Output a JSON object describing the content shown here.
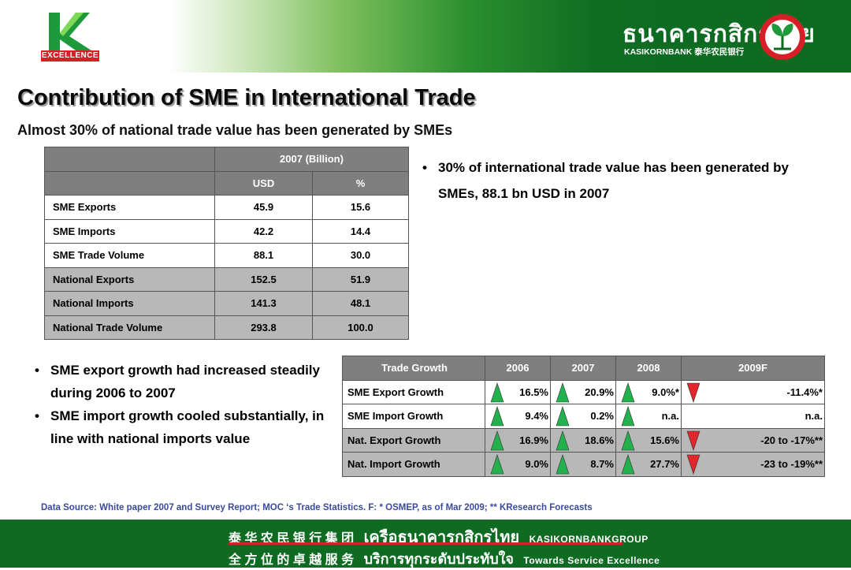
{
  "header": {
    "logo_word": "EXCELLENCE",
    "bank_thai": "ธนาคารกสิกรไทย",
    "bank_eng": "KASIKORNBANK 泰华农民银行"
  },
  "title": "Contribution of SME in International Trade",
  "subtitle": "Almost 30% of national trade value has been generated by SMEs",
  "table1": {
    "group_header": "2007 (Billion)",
    "col_usd": "USD",
    "col_pct": "%",
    "rows": [
      {
        "label": "SME Exports",
        "usd": "45.9",
        "pct": "15.6"
      },
      {
        "label": "SME Imports",
        "usd": "42.2",
        "pct": "14.4"
      },
      {
        "label": "SME Trade Volume",
        "usd": "88.1",
        "pct": "30.0"
      },
      {
        "label": "National Exports",
        "usd": "152.5",
        "pct": "51.9"
      },
      {
        "label": "National Imports",
        "usd": "141.3",
        "pct": "48.1"
      },
      {
        "label": "National Trade Volume",
        "usd": "293.8",
        "pct": "100.0"
      }
    ]
  },
  "bullets_right": [
    "30% of international trade value has been generated by SMEs,  88.1 bn USD in 2007"
  ],
  "bullets_left": [
    "SME export growth had increased steadily during 2006 to 2007",
    "SME import growth cooled substantially, in line with national imports value"
  ],
  "table2": {
    "headers": [
      "Trade Growth",
      "2006",
      "2007",
      "2008",
      "2009F"
    ],
    "rows": [
      {
        "label": "SME Export Growth",
        "cells": [
          {
            "value": "16.5%",
            "trend": "up"
          },
          {
            "value": "20.9%",
            "trend": "up"
          },
          {
            "value": "9.0%*",
            "trend": "up"
          },
          {
            "value": "-11.4%*",
            "trend": "down"
          }
        ]
      },
      {
        "label": "SME Import Growth",
        "cells": [
          {
            "value": "9.4%",
            "trend": "up"
          },
          {
            "value": "0.2%",
            "trend": "up"
          },
          {
            "value": "n.a.",
            "trend": "up"
          },
          {
            "value": "n.a.",
            "trend": "none"
          }
        ]
      },
      {
        "label": "Nat. Export Growth",
        "cells": [
          {
            "value": "16.9%",
            "trend": "up"
          },
          {
            "value": "18.6%",
            "trend": "up"
          },
          {
            "value": "15.6%",
            "trend": "up"
          },
          {
            "value": "-20 to -17%**",
            "trend": "down"
          }
        ]
      },
      {
        "label": "Nat. Import Growth",
        "cells": [
          {
            "value": "9.0%",
            "trend": "up"
          },
          {
            "value": "8.7%",
            "trend": "up"
          },
          {
            "value": "27.7%",
            "trend": "up"
          },
          {
            "value": "-23 to -19%**",
            "trend": "down"
          }
        ]
      }
    ]
  },
  "source": "Data Source: White paper 2007 and Survey Report; MOC ‘s Trade Statistics. F: * OSMEP, as of Mar 2009; ** KResearch  Forecasts",
  "footer": {
    "line1_cn": "泰 华 农 民 银 行 集 团",
    "line1_thai": "เครือธนาคารกสิกรไทย",
    "line1_eng": "KASIKORNBANKGROUP",
    "line2_cn": "全 方 位 的 卓 越 服 务",
    "line2_thai": "บริการทุกระดับประทับใจ",
    "line2_eng": "Towards Service Excellence"
  },
  "colors": {
    "up_arrow": "#22b14c",
    "down_arrow": "#e3262b",
    "footer_green": "#0f6b22",
    "table_header": "#7f7f7f"
  }
}
